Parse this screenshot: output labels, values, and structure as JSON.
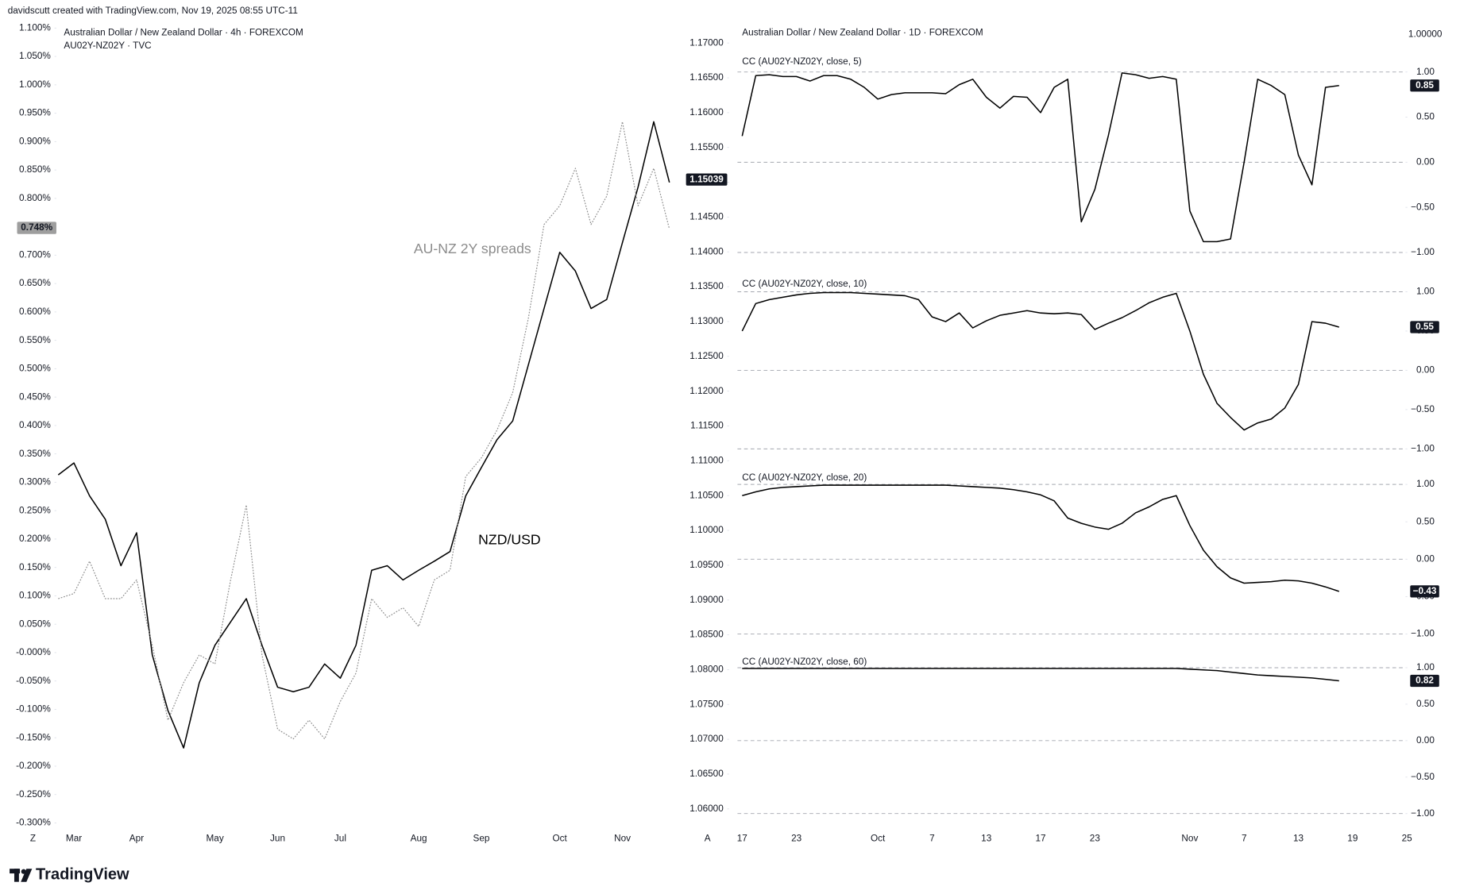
{
  "header": {
    "caption": "davidscutt created with TradingView.com, Nov 19, 2025 08:55 UTC-11"
  },
  "logo": {
    "text": "TradingView"
  },
  "chart_data": [
    {
      "type": "line",
      "title": "Australian Dollar / New Zealand Dollar · 4h · FOREXCOM",
      "subtitle": "AU02Y-NZ02Y · TVC",
      "corner_label": "Z",
      "categories": [
        null,
        "Mar",
        null,
        null,
        null,
        "Apr",
        null,
        null,
        null,
        null,
        "May",
        null,
        null,
        null,
        "Jun",
        null,
        null,
        null,
        "Jul",
        null,
        null,
        null,
        null,
        "Aug",
        null,
        null,
        null,
        "Sep",
        null,
        null,
        null,
        null,
        "Oct",
        null,
        null,
        null,
        "Nov",
        null,
        null,
        null
      ],
      "series": [
        {
          "name": "NZD/USD",
          "color": "#000000",
          "line_style": "solid",
          "values": [
            0.313,
            0.334,
            0.276,
            0.235,
            0.153,
            0.211,
            -0.004,
            -0.102,
            -0.168,
            -0.053,
            0.013,
            0.054,
            0.095,
            0.013,
            -0.061,
            -0.069,
            -0.061,
            -0.02,
            -0.045,
            0.013,
            0.145,
            0.153,
            0.128,
            0.145,
            0.161,
            0.178,
            0.276,
            0.326,
            0.375,
            0.408,
            0.507,
            0.606,
            0.705,
            0.672,
            0.606,
            0.622,
            0.722,
            0.82,
            0.935,
            0.828
          ]
        },
        {
          "name": "AU-NZ 2Y spreads",
          "color": "#8c8c8c",
          "line_style": "dotted",
          "values": [
            0.095,
            0.104,
            0.161,
            0.095,
            0.095,
            0.128,
            0.013,
            -0.119,
            -0.053,
            -0.004,
            -0.02,
            0.128,
            0.26,
            -0.004,
            -0.135,
            -0.152,
            -0.119,
            -0.152,
            -0.086,
            -0.036,
            0.095,
            0.062,
            0.079,
            0.046,
            0.128,
            0.145,
            0.31,
            0.343,
            0.392,
            0.458,
            0.589,
            0.754,
            0.787,
            0.853,
            0.754,
            0.804,
            0.935,
            0.787,
            0.853,
            0.746
          ]
        }
      ],
      "ylim": [
        -0.3,
        1.1
      ],
      "yticks": [
        {
          "value": 1.1,
          "label": "1.100%"
        },
        {
          "value": 1.05,
          "label": "1.050%"
        },
        {
          "value": 1.0,
          "label": "1.000%"
        },
        {
          "value": 0.95,
          "label": "0.950%"
        },
        {
          "value": 0.9,
          "label": "0.900%"
        },
        {
          "value": 0.85,
          "label": "0.850%"
        },
        {
          "value": 0.8,
          "label": "0.800%"
        },
        {
          "value": 0.75,
          "label": "0.750%"
        },
        {
          "value": 0.7,
          "label": "0.700%"
        },
        {
          "value": 0.65,
          "label": "0.650%"
        },
        {
          "value": 0.6,
          "label": "0.600%"
        },
        {
          "value": 0.55,
          "label": "0.550%"
        },
        {
          "value": 0.5,
          "label": "0.500%"
        },
        {
          "value": 0.45,
          "label": "0.450%"
        },
        {
          "value": 0.4,
          "label": "0.400%"
        },
        {
          "value": 0.35,
          "label": "0.350%"
        },
        {
          "value": 0.3,
          "label": "0.300%"
        },
        {
          "value": 0.25,
          "label": "0.250%"
        },
        {
          "value": 0.2,
          "label": "0.200%"
        },
        {
          "value": 0.15,
          "label": "0.150%"
        },
        {
          "value": 0.1,
          "label": "0.100%"
        },
        {
          "value": 0.05,
          "label": "0.050%"
        },
        {
          "value": 0,
          "label": "-0.000%"
        },
        {
          "value": -0.05,
          "label": "-0.050%"
        },
        {
          "value": -0.1,
          "label": "-0.100%"
        },
        {
          "value": -0.15,
          "label": "-0.150%"
        },
        {
          "value": -0.2,
          "label": "-0.200%"
        },
        {
          "value": -0.25,
          "label": "-0.250%"
        },
        {
          "value": -0.3,
          "label": "-0.300%"
        }
      ],
      "last_value": {
        "value": 0.748,
        "label": "0.748%"
      }
    },
    {
      "type": "line",
      "title": "Australian Dollar / New Zealand Dollar · 1D · FOREXCOM",
      "corner_label": "A",
      "scale_label": "1.00000",
      "categories": [
        "17",
        null,
        null,
        null,
        "23",
        null,
        null,
        null,
        null,
        null,
        "Oct",
        null,
        null,
        null,
        "7",
        null,
        null,
        null,
        "13",
        null,
        null,
        null,
        "17",
        null,
        null,
        null,
        "23",
        null,
        null,
        null,
        null,
        null,
        null,
        "Nov",
        null,
        null,
        null,
        "7",
        null,
        null,
        null,
        "13",
        null,
        null,
        null,
        "19",
        null,
        null,
        null,
        "25"
      ],
      "series": [],
      "ylim": [
        1.06,
        1.17
      ],
      "yticks": [
        {
          "value": 1.17,
          "label": "1.17000"
        },
        {
          "value": 1.165,
          "label": "1.16500"
        },
        {
          "value": 1.16,
          "label": "1.16000"
        },
        {
          "value": 1.155,
          "label": "1.15500"
        },
        {
          "value": 1.15,
          "label": "1.15000"
        },
        {
          "value": 1.145,
          "label": "1.14500"
        },
        {
          "value": 1.14,
          "label": "1.14000"
        },
        {
          "value": 1.135,
          "label": "1.13500"
        },
        {
          "value": 1.13,
          "label": "1.13000"
        },
        {
          "value": 1.125,
          "label": "1.12500"
        },
        {
          "value": 1.12,
          "label": "1.12000"
        },
        {
          "value": 1.115,
          "label": "1.11500"
        },
        {
          "value": 1.11,
          "label": "1.11000"
        },
        {
          "value": 1.105,
          "label": "1.10500"
        },
        {
          "value": 1.1,
          "label": "1.10000"
        },
        {
          "value": 1.095,
          "label": "1.09500"
        },
        {
          "value": 1.09,
          "label": "1.09000"
        },
        {
          "value": 1.085,
          "label": "1.08500"
        },
        {
          "value": 1.08,
          "label": "1.08000"
        },
        {
          "value": 1.075,
          "label": "1.07500"
        },
        {
          "value": 1.07,
          "label": "1.07000"
        },
        {
          "value": 1.065,
          "label": "1.06500"
        },
        {
          "value": 1.06,
          "label": "1.06000"
        }
      ],
      "last_value": {
        "value": 1.15039,
        "label": "1.15039"
      }
    },
    {
      "type": "line",
      "title": "CC (AU02Y-NZ02Y, close, 5)",
      "series": [
        {
          "color": "#000000",
          "values": [
            0.29,
            0.96,
            0.97,
            0.95,
            0.95,
            0.9,
            0.96,
            0.96,
            0.92,
            0.83,
            0.7,
            0.75,
            0.77,
            0.77,
            0.77,
            0.76,
            0.86,
            0.92,
            0.72,
            0.6,
            0.73,
            0.72,
            0.55,
            0.83,
            0.92,
            -0.66,
            -0.3,
            0.3,
            0.99,
            0.97,
            0.93,
            0.95,
            0.92,
            -0.54,
            -0.88,
            -0.88,
            -0.85,
            0.0,
            0.92,
            0.85,
            0.75,
            0.08,
            -0.25,
            0.83,
            0.85,
            null,
            null,
            null,
            null,
            null
          ]
        }
      ],
      "ylim": [
        -1,
        1
      ],
      "yticks": [
        {
          "value": 1,
          "label": "1.00"
        },
        {
          "value": 0.5,
          "label": "0.50"
        },
        {
          "value": 0,
          "label": "0.00"
        },
        {
          "value": -0.5,
          "label": "−0.50"
        },
        {
          "value": -1,
          "label": "−1.00"
        }
      ],
      "levels": [
        1,
        0,
        -1
      ],
      "last_value": 0.85
    },
    {
      "type": "line",
      "title": "CC (AU02Y-NZ02Y, close, 10)",
      "series": [
        {
          "color": "#000000",
          "values": [
            0.5,
            0.85,
            0.9,
            0.93,
            0.96,
            0.98,
            0.99,
            0.99,
            0.99,
            0.98,
            0.97,
            0.96,
            0.95,
            0.9,
            0.68,
            0.62,
            0.73,
            0.54,
            0.63,
            0.7,
            0.73,
            0.76,
            0.73,
            0.72,
            0.73,
            0.71,
            0.52,
            0.6,
            0.67,
            0.76,
            0.86,
            0.93,
            0.98,
            0.5,
            -0.05,
            -0.42,
            -0.6,
            -0.76,
            -0.67,
            -0.62,
            -0.48,
            -0.18,
            0.62,
            0.6,
            0.55,
            null,
            null,
            null,
            null,
            null
          ]
        }
      ],
      "ylim": [
        -1,
        1
      ],
      "yticks": [
        {
          "value": 1,
          "label": "1.00"
        },
        {
          "value": 0.5,
          "label": "0.50"
        },
        {
          "value": 0,
          "label": "0.00"
        },
        {
          "value": -0.5,
          "label": "−0.50"
        },
        {
          "value": -1,
          "label": "−1.00"
        }
      ],
      "levels": [
        1,
        0,
        -1
      ],
      "last_value": 0.55
    },
    {
      "type": "line",
      "title": "CC (AU02Y-NZ02Y, close, 20)",
      "series": [
        {
          "color": "#000000",
          "values": [
            0.85,
            0.9,
            0.94,
            0.96,
            0.97,
            0.98,
            0.99,
            0.99,
            0.99,
            0.99,
            0.99,
            0.99,
            0.99,
            0.99,
            0.99,
            0.99,
            0.98,
            0.97,
            0.96,
            0.95,
            0.93,
            0.9,
            0.86,
            0.78,
            0.55,
            0.48,
            0.43,
            0.4,
            0.48,
            0.62,
            0.7,
            0.8,
            0.85,
            0.45,
            0.12,
            -0.1,
            -0.25,
            -0.32,
            -0.31,
            -0.3,
            -0.28,
            -0.29,
            -0.32,
            -0.37,
            -0.43,
            null,
            null,
            null,
            null,
            null
          ]
        }
      ],
      "ylim": [
        -1,
        1
      ],
      "yticks": [
        {
          "value": 1,
          "label": "1.00"
        },
        {
          "value": 0.5,
          "label": "0.50"
        },
        {
          "value": 0,
          "label": "0.00"
        },
        {
          "value": -0.5,
          "label": "−0.50"
        },
        {
          "value": -1,
          "label": "−1.00"
        }
      ],
      "levels": [
        1,
        0,
        -1
      ],
      "last_value": {
        "value": -0.43,
        "label": "−0.43"
      }
    },
    {
      "type": "line",
      "title": "CC (AU02Y-NZ02Y, close, 60)",
      "series": [
        {
          "color": "#000000",
          "values": [
            0.99,
            0.99,
            0.99,
            0.99,
            0.99,
            0.99,
            0.99,
            0.99,
            0.99,
            0.99,
            0.99,
            0.99,
            0.99,
            0.99,
            0.99,
            0.99,
            0.99,
            0.99,
            0.99,
            0.99,
            0.99,
            0.99,
            0.99,
            0.99,
            0.99,
            0.99,
            0.99,
            0.99,
            0.99,
            0.99,
            0.99,
            0.99,
            0.99,
            0.98,
            0.97,
            0.96,
            0.94,
            0.92,
            0.9,
            0.89,
            0.88,
            0.87,
            0.86,
            0.84,
            0.82,
            null,
            null,
            null,
            null,
            null
          ]
        }
      ],
      "ylim": [
        -1,
        1
      ],
      "yticks": [
        {
          "value": 1,
          "label": "1.00"
        },
        {
          "value": 0.5,
          "label": "0.50"
        },
        {
          "value": 0,
          "label": "0.00"
        },
        {
          "value": -0.5,
          "label": "−0.50"
        },
        {
          "value": -1,
          "label": "−1.00"
        }
      ],
      "levels": [
        1,
        0,
        -1
      ],
      "last_value": 0.82
    }
  ]
}
